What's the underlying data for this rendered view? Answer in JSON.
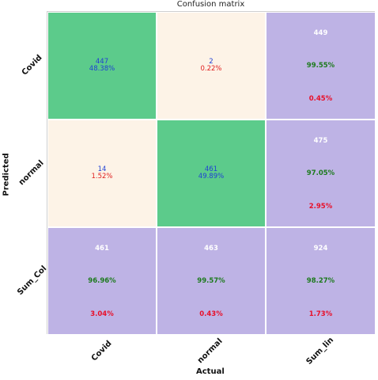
{
  "chart_data": {
    "type": "heatmap",
    "title": "Confusion matrix",
    "xlabel": "Actual",
    "ylabel": "Predicted",
    "x_categories": [
      "Covid",
      "normal",
      "Sum_lin"
    ],
    "y_categories": [
      "Covid",
      "normal",
      "Sum_Col"
    ],
    "colors": {
      "correct": "#5ccb8b",
      "incorrect": "#fdf3e7",
      "summary": "#beb3e5",
      "count_text": "#1f3fd4",
      "pct_text": "#e02020",
      "summary_count_text": "#ffffff",
      "summary_good_text": "#1d7a1d",
      "summary_bad_text": "#e8102a"
    },
    "cells": [
      [
        {
          "kind": "correct",
          "count": "447",
          "pct": "48.38%"
        },
        {
          "kind": "incorrect",
          "count": "2",
          "pct": "0.22%"
        },
        {
          "kind": "summary",
          "count": "449",
          "good": "99.55%",
          "bad": "0.45%"
        }
      ],
      [
        {
          "kind": "incorrect",
          "count": "14",
          "pct": "1.52%"
        },
        {
          "kind": "correct",
          "count": "461",
          "pct": "49.89%"
        },
        {
          "kind": "summary",
          "count": "475",
          "good": "97.05%",
          "bad": "2.95%"
        }
      ],
      [
        {
          "kind": "summary",
          "count": "461",
          "good": "96.96%",
          "bad": "3.04%"
        },
        {
          "kind": "summary",
          "count": "463",
          "good": "99.57%",
          "bad": "0.43%"
        },
        {
          "kind": "summary",
          "count": "924",
          "good": "98.27%",
          "bad": "1.73%"
        }
      ]
    ]
  }
}
